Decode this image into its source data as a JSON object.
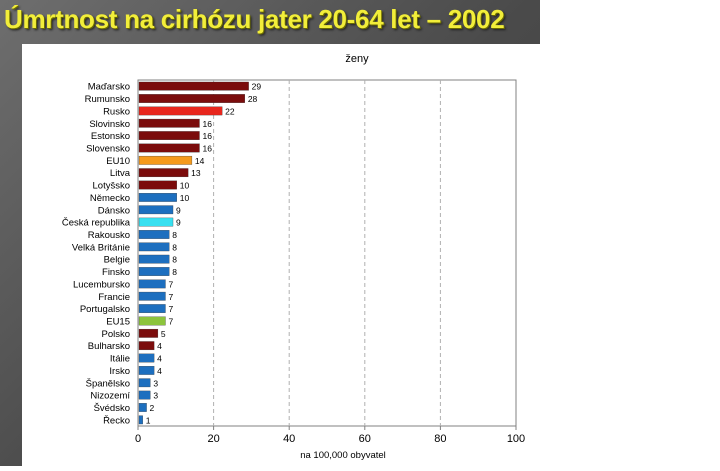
{
  "slide": {
    "title": "Úmrtnost na cirhózu jater 20-64 let – 2002"
  },
  "colors": {
    "dark_red": "#7b0c0c",
    "bright_red": "#e8261d",
    "orange": "#f59a1c",
    "blue": "#1d6fbf",
    "cyan": "#38e0f0",
    "green": "#8cc43c",
    "title_yellow": "#f2ee3a"
  },
  "chart_data": {
    "type": "bar",
    "orientation": "horizontal",
    "title": "ženy",
    "xlabel": "na 100,000 obyvatel",
    "xlim": [
      0,
      100
    ],
    "xticks": [
      "0",
      "20",
      "40",
      "60",
      "80",
      "100"
    ],
    "grid": true,
    "categories": [
      "Maďarsko",
      "Rumunsko",
      "Rusko",
      "Slovinsko",
      "Estonsko",
      "Slovensko",
      "EU10",
      "Litva",
      "Lotyšsko",
      "Německo",
      "Dánsko",
      "Česká republika",
      "Rakousko",
      "Velká Británie",
      "Belgie",
      "Finsko",
      "Lucembursko",
      "Francie",
      "Portugalsko",
      "EU15",
      "Polsko",
      "Bulharsko",
      "Itálie",
      "Irsko",
      "Španělsko",
      "Nizozemí",
      "Švédsko",
      "Řecko"
    ],
    "values": [
      29,
      28,
      22,
      16,
      16,
      16,
      14,
      13,
      10,
      10,
      9,
      9,
      8,
      8,
      8,
      8,
      7,
      7,
      7,
      7,
      5,
      4,
      4,
      4,
      3,
      3,
      2,
      1
    ],
    "value_labels": [
      "29",
      "28",
      "22",
      "16",
      "16",
      "16",
      "14",
      "13",
      "10",
      "10",
      "9",
      "9",
      "8",
      "8",
      "8",
      "8",
      "7",
      "7",
      "7",
      "7",
      "5",
      "4",
      "4",
      "4",
      "3",
      "3",
      "2",
      "1"
    ],
    "bar_colors": [
      "dark_red",
      "dark_red",
      "bright_red",
      "dark_red",
      "dark_red",
      "dark_red",
      "orange",
      "dark_red",
      "dark_red",
      "blue",
      "blue",
      "cyan",
      "blue",
      "blue",
      "blue",
      "blue",
      "blue",
      "blue",
      "blue",
      "green",
      "dark_red",
      "dark_red",
      "blue",
      "blue",
      "blue",
      "blue",
      "blue",
      "blue"
    ]
  }
}
